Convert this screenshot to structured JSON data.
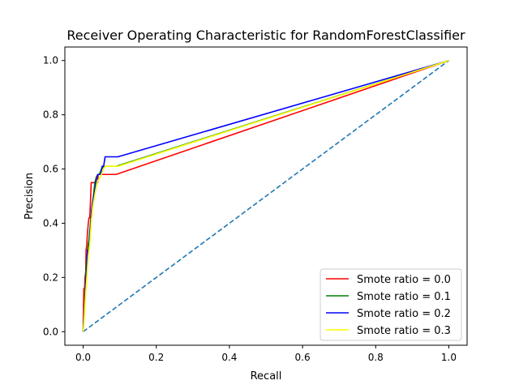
{
  "chart_data": {
    "type": "line",
    "title": "Receiver Operating Characteristic for RandomForestClassifier",
    "xlabel": "Recall",
    "ylabel": "Precision",
    "xlim": [
      -0.05,
      1.05
    ],
    "ylim": [
      -0.05,
      1.05
    ],
    "xticks": [
      "0.0",
      "0.2",
      "0.4",
      "0.6",
      "0.8",
      "1.0"
    ],
    "yticks": [
      "0.0",
      "0.2",
      "0.4",
      "0.6",
      "0.8",
      "1.0"
    ],
    "grid": false,
    "legend_position": "bottom-right",
    "reference_line": {
      "x": [
        0,
        1
      ],
      "y": [
        0,
        1
      ],
      "color": "#1f77b4",
      "style": "dashed"
    },
    "series": [
      {
        "name": "Smote ratio = 0.0",
        "color": "#ff0000",
        "x": [
          0,
          0.001,
          0.002,
          0.004,
          0.005,
          0.007,
          0.008,
          0.01,
          0.011,
          0.014,
          0.016,
          0.018,
          0.02,
          0.022,
          0.024,
          0.026,
          0.028,
          0.034,
          0.04,
          0.041,
          0.06,
          0.085,
          0.09,
          1.0
        ],
        "y": [
          0,
          0.1,
          0.16,
          0.16,
          0.2,
          0.22,
          0.3,
          0.32,
          0.35,
          0.4,
          0.42,
          0.42,
          0.48,
          0.55,
          0.55,
          0.55,
          0.55,
          0.55,
          0.55,
          0.58,
          0.58,
          0.58,
          0.58,
          1.0
        ]
      },
      {
        "name": "Smote ratio = 0.1",
        "color": "#008000",
        "x": [
          0,
          0.002,
          0.004,
          0.006,
          0.008,
          0.012,
          0.016,
          0.02,
          0.024,
          0.028,
          0.032,
          0.036,
          0.04,
          0.044,
          0.05,
          0.06,
          0.07,
          0.09,
          1.0
        ],
        "y": [
          0,
          0.05,
          0.1,
          0.16,
          0.24,
          0.3,
          0.34,
          0.4,
          0.46,
          0.5,
          0.55,
          0.57,
          0.58,
          0.58,
          0.6,
          0.61,
          0.61,
          0.61,
          1.0
        ]
      },
      {
        "name": "Smote ratio = 0.2",
        "color": "#0000ff",
        "x": [
          0,
          0.003,
          0.006,
          0.009,
          0.012,
          0.016,
          0.02,
          0.024,
          0.028,
          0.032,
          0.036,
          0.04,
          0.044,
          0.048,
          0.052,
          0.056,
          0.06,
          0.07,
          0.08,
          0.095,
          1.0
        ],
        "y": [
          0,
          0.06,
          0.14,
          0.22,
          0.3,
          0.3,
          0.38,
          0.46,
          0.49,
          0.52,
          0.56,
          0.58,
          0.58,
          0.58,
          0.61,
          0.61,
          0.645,
          0.645,
          0.645,
          0.645,
          1.0
        ]
      },
      {
        "name": "Smote ratio = 0.3",
        "color": "#ffff00",
        "x": [
          0,
          0.002,
          0.005,
          0.008,
          0.011,
          0.014,
          0.018,
          0.022,
          0.026,
          0.03,
          0.034,
          0.038,
          0.042,
          0.046,
          0.05,
          0.055,
          0.06,
          0.08,
          0.095,
          1.0
        ],
        "y": [
          0,
          0.03,
          0.1,
          0.16,
          0.22,
          0.28,
          0.32,
          0.4,
          0.46,
          0.49,
          0.52,
          0.55,
          0.56,
          0.57,
          0.58,
          0.6,
          0.61,
          0.61,
          0.61,
          1.0
        ]
      }
    ]
  }
}
